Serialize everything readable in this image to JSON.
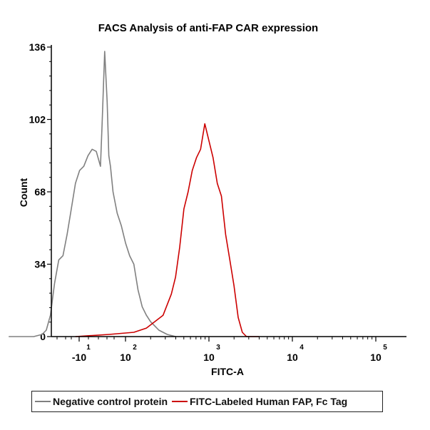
{
  "chart_data": {
    "type": "line",
    "title": "FACS Analysis of anti-FAP CAR expression",
    "xlabel": "FITC-A",
    "ylabel": "Count",
    "ylim": [
      0,
      136
    ],
    "y_ticks": [
      "0",
      "34",
      "68",
      "102",
      "136"
    ],
    "x_scale": "biexponential (log)",
    "x_ticks": [
      {
        "base": "-10",
        "exp": "1",
        "value": -10
      },
      {
        "base": "10",
        "exp": "2",
        "value": 100
      },
      {
        "base": "10",
        "exp": "3",
        "value": 1000
      },
      {
        "base": "10",
        "exp": "4",
        "value": 10000
      },
      {
        "base": "10",
        "exp": "5",
        "value": 100000
      }
    ],
    "grid": false,
    "legend_position": "bottom",
    "series": [
      {
        "name": "Negative control protein",
        "color": "#808080",
        "x_log10": [
          0.6,
          0.9,
          1.0,
          1.05,
          1.1,
          1.15,
          1.2,
          1.25,
          1.3,
          1.35,
          1.4,
          1.45,
          1.5,
          1.55,
          1.6,
          1.65,
          1.7,
          1.72,
          1.75,
          1.78,
          1.8,
          1.82,
          1.85,
          1.9,
          1.95,
          2.0,
          2.05,
          2.1,
          2.15,
          2.2,
          2.25,
          2.3,
          2.35,
          2.4,
          2.45,
          2.5,
          2.6
        ],
        "counts": [
          0,
          0,
          1,
          3,
          10,
          25,
          36,
          38,
          48,
          60,
          72,
          78,
          80,
          85,
          88,
          87,
          80,
          100,
          134,
          110,
          85,
          80,
          68,
          58,
          52,
          44,
          38,
          34,
          22,
          14,
          10,
          7,
          5,
          3,
          2,
          1,
          0
        ]
      },
      {
        "name": "FITC-Labeled Human FAP, Fc Tag",
        "color": "#cc0000",
        "x_log10": [
          1.4,
          1.8,
          2.1,
          2.25,
          2.35,
          2.45,
          2.55,
          2.6,
          2.65,
          2.7,
          2.75,
          2.8,
          2.85,
          2.9,
          2.95,
          3.0,
          3.05,
          3.1,
          3.15,
          3.2,
          3.25,
          3.3,
          3.35,
          3.4,
          3.45,
          3.6
        ],
        "counts": [
          0,
          1,
          2,
          4,
          7,
          10,
          20,
          28,
          42,
          60,
          68,
          78,
          84,
          88,
          100,
          92,
          84,
          72,
          66,
          48,
          36,
          24,
          9,
          2,
          0,
          0
        ]
      }
    ]
  }
}
